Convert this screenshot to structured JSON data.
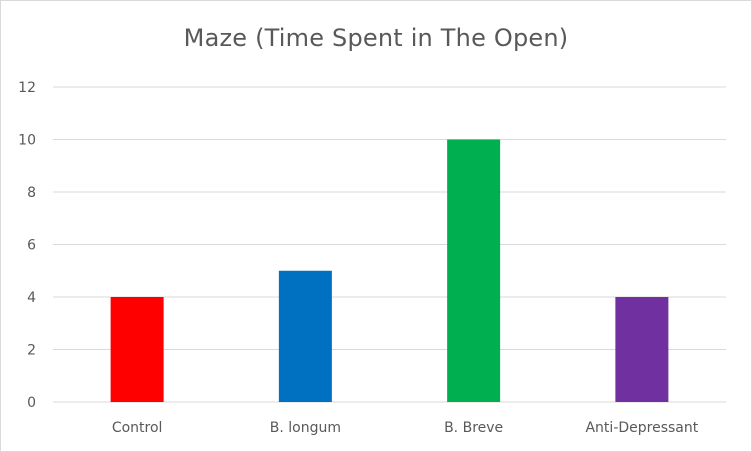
{
  "chart_data": {
    "type": "bar",
    "title": "Maze (Time Spent in The Open)",
    "xlabel": "",
    "ylabel": "",
    "categories": [
      "Control",
      "B. longum",
      "B. Breve",
      "Anti-Depressant"
    ],
    "values": [
      4,
      5,
      10,
      4
    ],
    "colors": [
      "#ff0000",
      "#0070c0",
      "#00b050",
      "#7030a0"
    ],
    "ylim": [
      0,
      12
    ],
    "yticks": [
      "0",
      "2",
      "4",
      "6",
      "8",
      "10",
      "12"
    ],
    "grid": true,
    "legend": "none",
    "gridColor": "#d9d9d9"
  }
}
